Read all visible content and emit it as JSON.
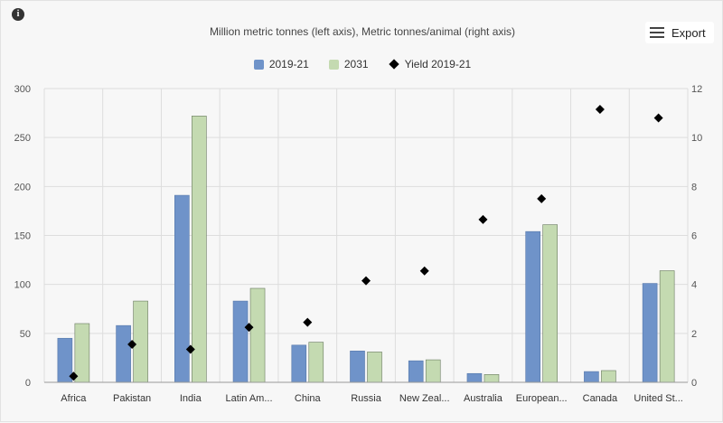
{
  "info_glyph": "i",
  "title": "Million metric tonnes (left axis), Metric tonnes/animal (right axis)",
  "export_label": "Export",
  "colors": {
    "series1": "#6f93c9",
    "series2": "#c4dab1",
    "yield": "#000000",
    "grid": "#dddddd"
  },
  "chart_data": {
    "type": "bar",
    "title": "Million metric tonnes (left axis), Metric tonnes/animal (right axis)",
    "categories": [
      "Africa",
      "Pakistan",
      "India",
      "Latin Am...",
      "China",
      "Russia",
      "New Zeal...",
      "Australia",
      "European...",
      "Canada",
      "United St..."
    ],
    "series": [
      {
        "name": "2019-21",
        "type": "bar",
        "axis": "left",
        "values": [
          45,
          58,
          191,
          83,
          38,
          32,
          22,
          9,
          154,
          11,
          101
        ]
      },
      {
        "name": "2031",
        "type": "bar",
        "axis": "left",
        "values": [
          60,
          83,
          272,
          96,
          41,
          31,
          23,
          8,
          161,
          12,
          114
        ]
      },
      {
        "name": "Yield 2019-21",
        "type": "scatter",
        "axis": "right",
        "values": [
          0.25,
          1.55,
          1.35,
          2.25,
          2.45,
          4.15,
          4.55,
          6.65,
          7.5,
          11.15,
          10.8
        ]
      }
    ],
    "ylim_left": [
      0,
      300
    ],
    "yticks_left": [
      0,
      50,
      100,
      150,
      200,
      250,
      300
    ],
    "ylim_right": [
      0,
      12
    ],
    "yticks_right": [
      0,
      2,
      4,
      6,
      8,
      10,
      12
    ],
    "grid": true,
    "legend": "top-center"
  }
}
